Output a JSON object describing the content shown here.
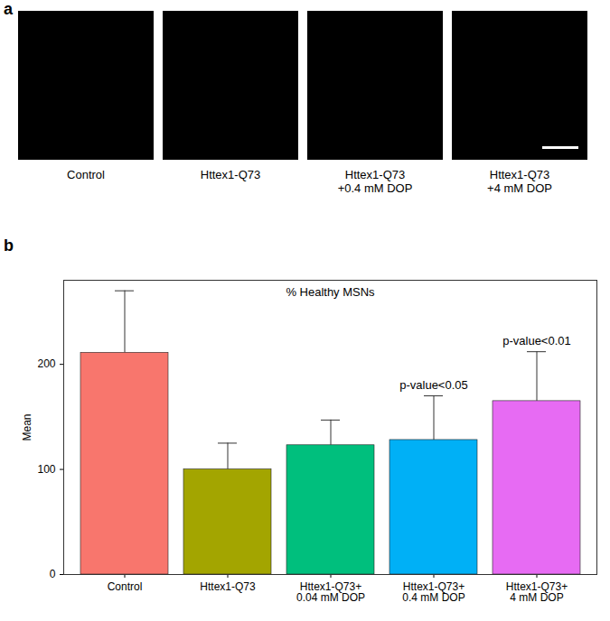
{
  "figure": {
    "panels": [
      {
        "label": "a",
        "captions": [
          "Control",
          "Httex1-Q73",
          "Httex1-Q73\n+0.4 mM DOP",
          "Httex1-Q73\n+4 mM DOP"
        ]
      },
      {
        "label": "b"
      }
    ]
  },
  "chart_data": {
    "type": "bar",
    "title": "% Healthy MSNs",
    "y_label": "Mean",
    "categories": [
      "Control",
      "Httex1-Q73",
      "Httex1-Q73+\n0.04 mM DOP",
      "Httex1-Q73+\n0.4 mM DOP",
      "Httex1-Q73+\n4 mM DOP"
    ],
    "values": [
      211,
      100,
      123,
      128,
      165
    ],
    "errors": [
      59,
      25,
      24,
      42,
      47
    ],
    "colors": [
      "#F8766D",
      "#A3A500",
      "#00BF7D",
      "#00B0F6",
      "#E76BF3"
    ],
    "ylim": [
      0,
      280
    ],
    "yticks": [
      0,
      100,
      200
    ],
    "grid": false,
    "annotations": [
      {
        "category": "Httex1-Q73+\n0.4 mM DOP",
        "text": "p-value<0.05"
      },
      {
        "category": "Httex1-Q73+\n4 mM DOP",
        "text": "p-value<0.01"
      }
    ]
  }
}
